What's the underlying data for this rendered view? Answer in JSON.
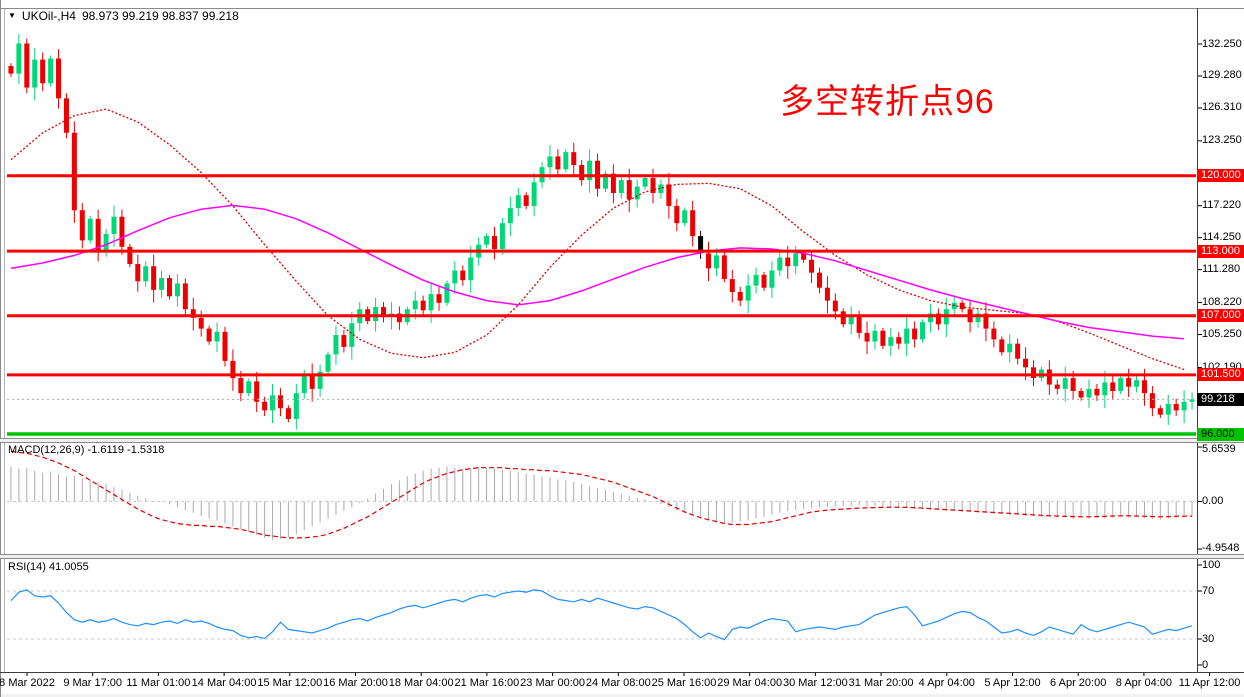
{
  "window": {
    "symbol_period": "UKOil-,H4",
    "ohlc_text": "98.973 99.219 98.837 99.218"
  },
  "annotation": {
    "text": "多空转折点96"
  },
  "colors": {
    "bull": "#00D878",
    "bear": "#EC0000",
    "neutral": "#000000",
    "hline_red": "#FF0000",
    "hline_green": "#00C400",
    "ma_fast": "#D80000",
    "ma_slow": "#FF00FF",
    "macd_hist": "#ABABAB",
    "macd_signal": "#E00000",
    "rsi_line": "#1E90FF",
    "level_dash": "#C8C8C8",
    "current_price_bg": "#000000",
    "current_price_dash": "#ABABAB"
  },
  "time_axis": {
    "labels": [
      "8 Mar 2022",
      "9 Mar 17:00",
      "11 Mar 01:00",
      "14 Mar 04:00",
      "15 Mar 12:00",
      "16 Mar 20:00",
      "18 Mar 04:00",
      "21 Mar 16:00",
      "23 Mar 00:00",
      "24 Mar 08:00",
      "25 Mar 16:00",
      "29 Mar 04:00",
      "30 Mar 12:00",
      "31 Mar 20:00",
      "4 Apr 04:00",
      "5 Apr 12:00",
      "6 Apr 20:00",
      "8 Apr 04:00",
      "11 Apr 12:00"
    ]
  },
  "chart_data": [
    {
      "type": "candlestick",
      "title": "UKOil-,H4",
      "bars_per_label": 8,
      "ylim": [
        95.5,
        134.9
      ],
      "price_ticks": [
        {
          "price": 132.25,
          "label": "132.250"
        },
        {
          "price": 129.28,
          "label": "129.280"
        },
        {
          "price": 126.31,
          "label": "126.310"
        },
        {
          "price": 123.25,
          "label": "123.250"
        },
        {
          "price": 117.22,
          "label": "117.220"
        },
        {
          "price": 114.25,
          "label": "114.250"
        },
        {
          "price": 111.28,
          "label": "111.280"
        },
        {
          "price": 108.22,
          "label": "108.220"
        },
        {
          "price": 105.25,
          "label": "105.250"
        },
        {
          "price": 102.19,
          "label": "102.190"
        }
      ],
      "hlines": [
        {
          "price": 120.0,
          "label": "120.000",
          "color_key": "hline_red"
        },
        {
          "price": 113.0,
          "label": "113.000",
          "color_key": "hline_red"
        },
        {
          "price": 107.0,
          "label": "107.000",
          "color_key": "hline_red"
        },
        {
          "price": 101.5,
          "label": "101.500",
          "color_key": "hline_red"
        },
        {
          "price": 96.0,
          "label": "96.000",
          "color_key": "hline_green"
        }
      ],
      "current_price": {
        "value": 99.218,
        "label": "99.218"
      },
      "first_open": 130.2,
      "neutral_bar_index": 87,
      "closes": [
        129.5,
        132.3,
        128.2,
        130.8,
        128.6,
        130.9,
        127.2,
        124.0,
        116.8,
        114.0,
        116.0,
        113.0,
        114.6,
        116.2,
        113.4,
        111.8,
        110.2,
        111.6,
        109.4,
        110.5,
        108.8,
        110.0,
        107.6,
        106.8,
        105.8,
        104.6,
        105.5,
        102.8,
        101.2,
        99.8,
        100.9,
        99.0,
        98.2,
        99.6,
        98.4,
        97.4,
        99.8,
        101.5,
        100.2,
        101.8,
        103.4,
        105.2,
        104.1,
        106.3,
        107.6,
        106.5,
        107.8,
        106.9,
        107.2,
        106.4,
        107.6,
        108.4,
        107.5,
        109.0,
        108.2,
        110.0,
        111.2,
        110.3,
        112.4,
        113.6,
        114.4,
        113.2,
        115.6,
        117.0,
        118.2,
        117.2,
        119.4,
        120.8,
        121.8,
        120.6,
        122.2,
        121.0,
        119.6,
        121.4,
        118.8,
        120.2,
        118.4,
        119.6,
        117.8,
        119.0,
        119.8,
        118.4,
        119.2,
        117.2,
        115.6,
        116.8,
        114.4,
        112.8,
        111.4,
        112.6,
        110.4,
        109.2,
        108.4,
        109.8,
        110.8,
        109.6,
        111.2,
        112.4,
        111.6,
        112.8,
        112.2,
        111.0,
        109.6,
        108.4,
        107.4,
        106.2,
        107.0,
        105.4,
        104.6,
        105.6,
        104.2,
        105.0,
        104.4,
        105.8,
        104.8,
        106.4,
        107.2,
        106.2,
        107.6,
        108.2,
        107.6,
        106.4,
        107.2,
        105.8,
        104.8,
        103.6,
        104.4,
        103.0,
        102.2,
        101.2,
        102.0,
        100.6,
        100.2,
        101.2,
        100.0,
        99.4,
        100.2,
        99.6,
        100.8,
        100.0,
        101.2,
        100.4,
        101.0,
        99.8,
        98.4,
        97.8,
        98.8,
        98.2,
        99.0,
        99.218
      ],
      "ma_fast": {
        "name": "red-dashed-ma",
        "step": 4,
        "values": [
          121.5,
          124.0,
          125.6,
          126.2,
          125.0,
          122.9,
          120.3,
          117.2,
          113.6,
          110.2,
          107.0,
          104.8,
          103.5,
          103.1,
          103.6,
          105.2,
          108.0,
          111.5,
          114.5,
          117.0,
          118.5,
          119.2,
          119.3,
          118.8,
          117.2,
          114.8,
          112.6,
          110.8,
          109.4,
          108.4,
          107.8,
          107.5,
          107.2,
          106.5,
          105.4,
          104.2,
          103.0,
          102.0
        ]
      },
      "ma_slow": {
        "name": "magenta-ma",
        "step": 4,
        "values": [
          111.4,
          111.9,
          112.6,
          113.6,
          114.9,
          116.1,
          116.9,
          117.25,
          116.9,
          116.0,
          114.7,
          113.2,
          111.7,
          110.3,
          109.2,
          108.4,
          108.0,
          108.4,
          109.3,
          110.4,
          111.5,
          112.4,
          113.0,
          113.3,
          113.2,
          112.8,
          112.1,
          111.2,
          110.3,
          109.4,
          108.6,
          107.9,
          107.2,
          106.5,
          105.9,
          105.5,
          105.1,
          104.85
        ]
      }
    },
    {
      "type": "macd_histogram",
      "params": "MACD(12,26,9)",
      "values_text": "-1.6119 -1.5318",
      "macd_value": -1.6119,
      "signal_value": -1.5318,
      "axis_labels": [
        "5.6539",
        "0.00",
        "-4.9548"
      ],
      "axis_values": [
        5.6539,
        0,
        -4.9548
      ],
      "histogram": [
        3.6,
        3.4,
        3.5,
        3.2,
        3.0,
        3.1,
        2.8,
        2.6,
        2.7,
        2.4,
        2.2,
        2.0,
        1.8,
        1.5,
        1.2,
        0.9,
        0.6,
        0.3,
        0.1,
        -0.1,
        -0.3,
        -0.6,
        -0.9,
        -1.2,
        -1.5,
        -1.8,
        -2.0,
        -2.3,
        -2.6,
        -2.9,
        -3.2,
        -3.5,
        -3.8,
        -4.0,
        -3.9,
        -3.7,
        -3.4,
        -3.0,
        -2.6,
        -2.2,
        -1.8,
        -1.4,
        -1.0,
        -0.6,
        -0.2,
        0.3,
        0.8,
        1.3,
        1.8,
        2.2,
        2.6,
        2.9,
        3.2,
        3.4,
        3.5,
        3.6,
        3.5,
        3.4,
        3.5,
        3.6,
        3.5,
        3.4,
        3.3,
        3.2,
        3.0,
        2.9,
        2.8,
        2.6,
        2.5,
        2.3,
        2.2,
        2.0,
        1.8,
        1.6,
        1.4,
        1.2,
        1.0,
        0.8,
        0.6,
        0.4,
        0.2,
        0.0,
        -0.3,
        -0.6,
        -0.9,
        -1.2,
        -1.5,
        -1.8,
        -2.0,
        -2.2,
        -2.3,
        -2.2,
        -2.1,
        -2.0,
        -1.8,
        -1.6,
        -1.4,
        -1.2,
        -1.0,
        -0.9,
        -0.8,
        -0.7,
        -0.6,
        -0.6,
        -0.5,
        -0.5,
        -0.4,
        -0.4,
        -0.5,
        -0.5,
        -0.6,
        -0.6,
        -0.7,
        -0.7,
        -0.8,
        -0.8,
        -0.9,
        -0.9,
        -1.0,
        -1.0,
        -1.1,
        -1.1,
        -1.2,
        -1.2,
        -1.3,
        -1.3,
        -1.4,
        -1.4,
        -1.5,
        -1.5,
        -1.6,
        -1.6,
        -1.7,
        -1.7,
        -1.8,
        -1.7,
        -1.8,
        -1.7,
        -1.8,
        -1.7,
        -1.6,
        -1.7,
        -1.6,
        -1.7,
        -1.8,
        -1.9,
        -1.8,
        -1.7,
        -1.65,
        -1.6119
      ],
      "signal": [
        5.2,
        5.1,
        5.0,
        4.8,
        4.6,
        4.3,
        4.0,
        3.6,
        3.2,
        2.7,
        2.2,
        1.7,
        1.2,
        0.7,
        0.2,
        -0.3,
        -0.8,
        -1.2,
        -1.6,
        -1.9,
        -2.1,
        -2.3,
        -2.4,
        -2.5,
        -2.5,
        -2.6,
        -2.6,
        -2.7,
        -2.8,
        -2.9,
        -3.1,
        -3.3,
        -3.5,
        -3.6,
        -3.7,
        -3.8,
        -3.8,
        -3.8,
        -3.7,
        -3.6,
        -3.4,
        -3.1,
        -2.8,
        -2.4,
        -2.0,
        -1.6,
        -1.1,
        -0.6,
        -0.1,
        0.4,
        0.9,
        1.4,
        1.9,
        2.3,
        2.6,
        2.9,
        3.1,
        3.3,
        3.4,
        3.5,
        3.5,
        3.5,
        3.5,
        3.4,
        3.4,
        3.3,
        3.3,
        3.2,
        3.2,
        3.1,
        3.0,
        2.9,
        2.8,
        2.6,
        2.4,
        2.2,
        2.0,
        1.7,
        1.4,
        1.1,
        0.8,
        0.5,
        0.1,
        -0.3,
        -0.7,
        -1.1,
        -1.4,
        -1.7,
        -1.9,
        -2.1,
        -2.3,
        -2.4,
        -2.4,
        -2.4,
        -2.3,
        -2.2,
        -2.1,
        -1.9,
        -1.7,
        -1.5,
        -1.3,
        -1.1,
        -1.0,
        -0.9,
        -0.85,
        -0.8,
        -0.75,
        -0.7,
        -0.68,
        -0.65,
        -0.62,
        -0.6,
        -0.6,
        -0.62,
        -0.65,
        -0.7,
        -0.75,
        -0.8,
        -0.85,
        -0.9,
        -0.95,
        -1.0,
        -1.05,
        -1.1,
        -1.15,
        -1.2,
        -1.25,
        -1.3,
        -1.35,
        -1.4,
        -1.45,
        -1.5,
        -1.52,
        -1.55,
        -1.58,
        -1.6,
        -1.6,
        -1.58,
        -1.55,
        -1.52,
        -1.5,
        -1.5,
        -1.52,
        -1.55,
        -1.58,
        -1.6,
        -1.58,
        -1.55,
        -1.54,
        -1.5318
      ]
    },
    {
      "type": "rsi_line",
      "params": "RSI(14)",
      "value_text": "41.0055",
      "value": 41.0055,
      "axis_labels": [
        "100",
        "70",
        "30",
        "0"
      ],
      "levels": [
        70,
        30
      ],
      "series": [
        62,
        69,
        71,
        66,
        65,
        66,
        60,
        52,
        46,
        44,
        46,
        44,
        45,
        47,
        44,
        42,
        41,
        43,
        42,
        44,
        45,
        43,
        46,
        44,
        45,
        43,
        40,
        38,
        37,
        33,
        31,
        32,
        30.5,
        36,
        44,
        38,
        37,
        36,
        35,
        37,
        39,
        42,
        44,
        46,
        47,
        45,
        48,
        50,
        52,
        55,
        57,
        58,
        56,
        58,
        60,
        62,
        63,
        61,
        64,
        66,
        67,
        65,
        68,
        69,
        70,
        69,
        71,
        70,
        66,
        63,
        62,
        61,
        63,
        61,
        64,
        62,
        60,
        58,
        56,
        55,
        57,
        56,
        53,
        50,
        47,
        42,
        36,
        31,
        35,
        32,
        29.5,
        38,
        40,
        39,
        42,
        45,
        47,
        46,
        45,
        36,
        38,
        39,
        40,
        39,
        38,
        40,
        41,
        42,
        46,
        50,
        52,
        54,
        56,
        57,
        50,
        41,
        43,
        45,
        48,
        51,
        53,
        52,
        48,
        45,
        40,
        35,
        36,
        38,
        35,
        33,
        36,
        40,
        38,
        36,
        34,
        42,
        38,
        36,
        38,
        40,
        42,
        44,
        42,
        40,
        34,
        36,
        38,
        37,
        39,
        41.0055
      ]
    }
  ]
}
